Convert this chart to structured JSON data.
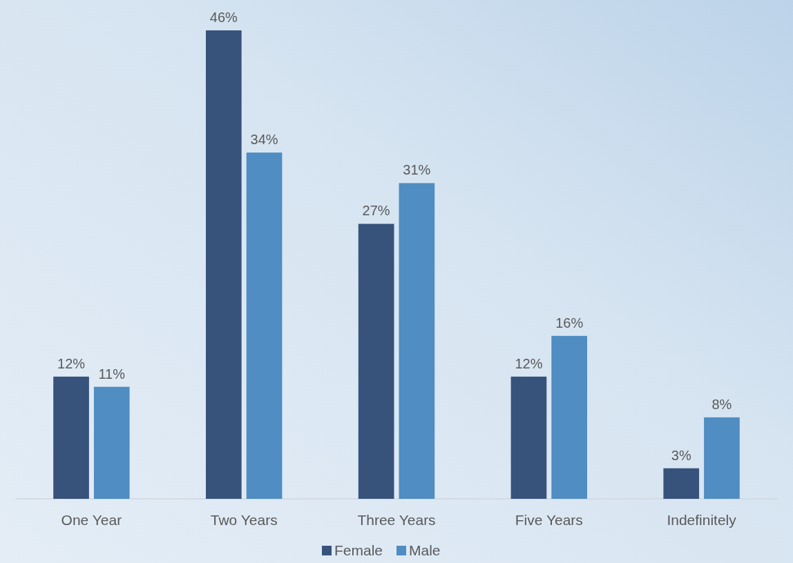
{
  "chart_data": {
    "type": "bar",
    "categories": [
      "One Year",
      "Two Years",
      "Three Years",
      "Five Years",
      "Indefinitely"
    ],
    "series": [
      {
        "name": "Female",
        "color": "#37537c",
        "values": [
          12,
          46,
          27,
          12,
          3
        ],
        "value_labels": [
          "12%",
          "46%",
          "27%",
          "12%",
          "3%"
        ]
      },
      {
        "name": "Male",
        "color": "#4f8dc2",
        "values": [
          11,
          34,
          31,
          16,
          8
        ],
        "value_labels": [
          "11%",
          "34%",
          "31%",
          "16%",
          "8%"
        ]
      }
    ],
    "legend": "bottom"
  }
}
